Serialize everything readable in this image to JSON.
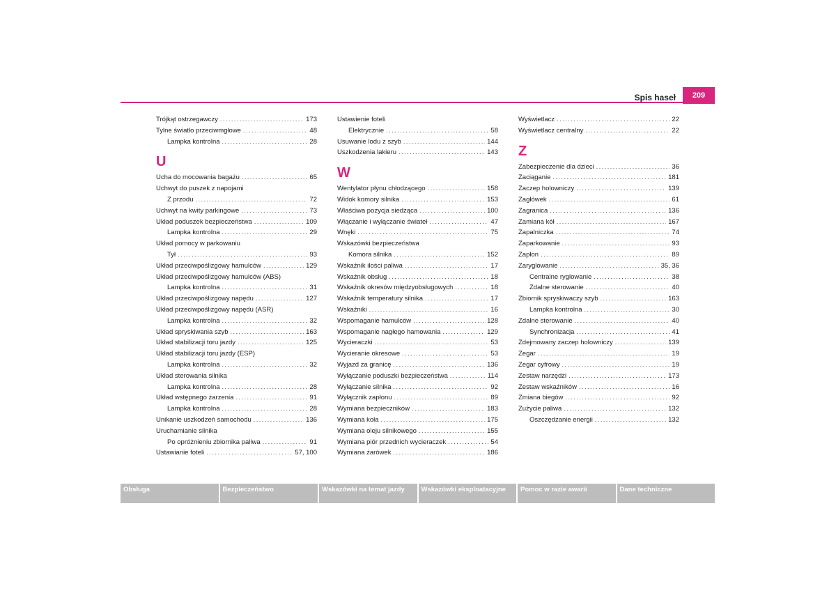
{
  "header": {
    "title": "Spis haseł",
    "page_number": "209"
  },
  "columns": [
    [
      {
        "label": "Trójkąt ostrzegawczy",
        "page": "173"
      },
      {
        "label": "Tylne światło przeciwmgłowe",
        "page": "48"
      },
      {
        "label": "Lampka kontrolna",
        "page": "28",
        "sub": true
      },
      {
        "letter": "U"
      },
      {
        "label": "Ucha do mocowania bagażu",
        "page": "65"
      },
      {
        "label": "Uchwyt do puszek z napojami",
        "page": ""
      },
      {
        "label": "Z przodu",
        "page": "72",
        "sub": true
      },
      {
        "label": "Uchwyt na kwity parkingowe",
        "page": "73"
      },
      {
        "label": "Układ poduszek bezpieczeństwa",
        "page": "109"
      },
      {
        "label": "Lampka kontrolna",
        "page": "29",
        "sub": true
      },
      {
        "label": "Układ pomocy w parkowaniu",
        "page": ""
      },
      {
        "label": "Tył",
        "page": "93",
        "sub": true
      },
      {
        "label": "Układ przeciwpoślizgowy hamulców",
        "page": "129"
      },
      {
        "label": "Układ przeciwpoślizgowy hamulców (ABS)",
        "page": ""
      },
      {
        "label": "Lampka kontrolna",
        "page": "31",
        "sub": true
      },
      {
        "label": "Układ przeciwpoślizgowy napędu",
        "page": "127"
      },
      {
        "label": "Układ przeciwpoślizgowy napędu (ASR)",
        "page": ""
      },
      {
        "label": "Lampka kontrolna",
        "page": "32",
        "sub": true
      },
      {
        "label": "Układ spryskiwania szyb",
        "page": "163"
      },
      {
        "label": "Układ stabilizacji toru jazdy",
        "page": "125"
      },
      {
        "label": "Układ stabilizacji toru jazdy (ESP)",
        "page": ""
      },
      {
        "label": "Lampka kontrolna",
        "page": "32",
        "sub": true
      },
      {
        "label": "Układ sterowania silnika",
        "page": ""
      },
      {
        "label": "Lampka kontrolna",
        "page": "28",
        "sub": true
      },
      {
        "label": "Układ wstępnego żarzenia",
        "page": "91"
      },
      {
        "label": "Lampka kontrolna",
        "page": "28",
        "sub": true
      },
      {
        "label": "Unikanie uszkodzeń samochodu",
        "page": "136"
      },
      {
        "label": "Uruchamianie silnika",
        "page": ""
      },
      {
        "label": "Po opróżnieniu zbiornika paliwa",
        "page": "91",
        "sub": true
      },
      {
        "label": "Ustawianie foteli",
        "page": "57, 100"
      }
    ],
    [
      {
        "label": "Ustawienie foteli",
        "page": ""
      },
      {
        "label": "Elektrycznie",
        "page": "58",
        "sub": true
      },
      {
        "label": "Usuwanie lodu z szyb",
        "page": "144"
      },
      {
        "label": "Uszkodzenia lakieru",
        "page": "143"
      },
      {
        "letter": "W"
      },
      {
        "label": "Wentylator płynu chłodzącego",
        "page": "158"
      },
      {
        "label": "Widok komory silnika",
        "page": "153"
      },
      {
        "label": "Właściwa pozycja siedząca",
        "page": "100"
      },
      {
        "label": "Włączanie i wyłączanie świateł",
        "page": "47"
      },
      {
        "label": "Wnęki",
        "page": "75"
      },
      {
        "label": "Wskazówki bezpieczeństwa",
        "page": ""
      },
      {
        "label": "Komora silnika",
        "page": "152",
        "sub": true
      },
      {
        "label": "Wskaźnik ilości paliwa",
        "page": "17"
      },
      {
        "label": "Wskaźnik obsług",
        "page": "18"
      },
      {
        "label": "Wskaźnik okresów międzyobsługowych",
        "page": "18"
      },
      {
        "label": "Wskaźnik temperatury silnika",
        "page": "17"
      },
      {
        "label": "Wskaźniki",
        "page": "16"
      },
      {
        "label": "Wspomaganie hamulców",
        "page": "128"
      },
      {
        "label": "Wspomaganie nagłego hamowania",
        "page": "129"
      },
      {
        "label": "Wycieraczki",
        "page": "53"
      },
      {
        "label": "Wycieranie okresowe",
        "page": "53"
      },
      {
        "label": "Wyjazd za granicę",
        "page": "136"
      },
      {
        "label": "Wyłączanie poduszki bezpieczeństwa",
        "page": "114"
      },
      {
        "label": "Wyłączanie silnika",
        "page": "92"
      },
      {
        "label": "Wyłącznik zapłonu",
        "page": "89"
      },
      {
        "label": "Wymiana bezpieczników",
        "page": "183"
      },
      {
        "label": "Wymiana koła",
        "page": "175"
      },
      {
        "label": "Wymiana oleju silnikowego",
        "page": "155"
      },
      {
        "label": "Wymiana piór przednich wycieraczek",
        "page": "54"
      },
      {
        "label": "Wymiana żarówek",
        "page": "186"
      }
    ],
    [
      {
        "label": "Wyświetlacz",
        "page": "22"
      },
      {
        "label": "Wyświetlacz centralny",
        "page": "22"
      },
      {
        "letter": "Z"
      },
      {
        "label": "Zabezpieczenie dla dzieci",
        "page": "36"
      },
      {
        "label": "Zaciąganie",
        "page": "181"
      },
      {
        "label": "Zaczep holowniczy",
        "page": "139"
      },
      {
        "label": "Zagłówek",
        "page": "61"
      },
      {
        "label": "Zagranica",
        "page": "136"
      },
      {
        "label": "Zamiana kół",
        "page": "167"
      },
      {
        "label": "Zapalniczka",
        "page": "74"
      },
      {
        "label": "Zaparkowanie",
        "page": "93"
      },
      {
        "label": "Zapłon",
        "page": "89"
      },
      {
        "label": "Zaryglowanie",
        "page": "35, 36"
      },
      {
        "label": "Centralne ryglowanie",
        "page": "38",
        "sub": true
      },
      {
        "label": "Zdalne sterowanie",
        "page": "40",
        "sub": true
      },
      {
        "label": "Zbiornik spryskiwaczy szyb",
        "page": "163"
      },
      {
        "label": "Lampka kontrolna",
        "page": "30",
        "sub": true
      },
      {
        "label": "Zdalne sterowanie",
        "page": "40"
      },
      {
        "label": "Synchronizacja",
        "page": "41",
        "sub": true
      },
      {
        "label": "Zdejmowany zaczep holowniczy",
        "page": "139"
      },
      {
        "label": "Zegar",
        "page": "19"
      },
      {
        "label": "Zegar cyfrowy",
        "page": "19"
      },
      {
        "label": "Zestaw narzędzi",
        "page": "173"
      },
      {
        "label": "Zestaw wskaźników",
        "page": "16"
      },
      {
        "label": "Zmiana biegów",
        "page": "92"
      },
      {
        "label": "Zużycie paliwa",
        "page": "132"
      },
      {
        "label": "Oszczędzanie energii",
        "page": "132",
        "sub": true
      }
    ]
  ],
  "footer": {
    "tabs": [
      "Obsługa",
      "Bezpieczeństwo",
      "Wskazówki na temat jazdy",
      "Wskazówki eksploatacyjne",
      "Pomoc w razie awarii",
      "Dane techniczne"
    ]
  },
  "colors": {
    "accent": "#d8267f",
    "footer_tab": "#bdbdbd"
  }
}
